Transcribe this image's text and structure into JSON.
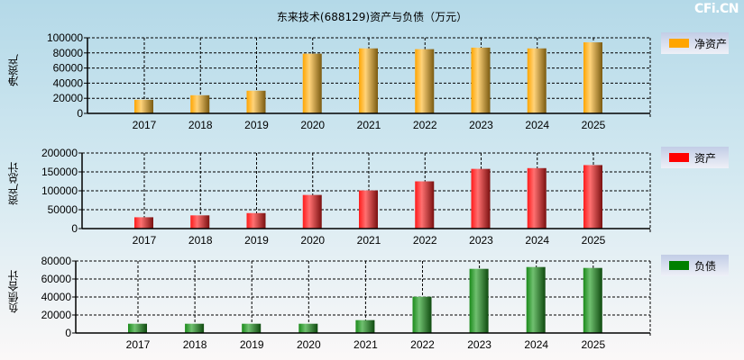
{
  "title": "东来技术(688129)资产与负债（万元）",
  "watermark": "CFi.CN",
  "chart_data": [
    {
      "type": "bar",
      "ylabel": "净资产",
      "legend": "净资产",
      "color": "#ffa500",
      "categories": [
        "2017",
        "2018",
        "2019",
        "2020",
        "2021",
        "2022",
        "2023",
        "2024",
        "2025"
      ],
      "values": [
        18000,
        24000,
        30000,
        79000,
        86000,
        85000,
        87000,
        86000,
        94000
      ],
      "ylim": [
        0,
        100000
      ],
      "yticks": [
        0,
        20000,
        40000,
        60000,
        80000,
        100000
      ],
      "grid": true,
      "legend_position": "right"
    },
    {
      "type": "bar",
      "ylabel": "资产总计",
      "legend": "资产",
      "color": "#ff0000",
      "categories": [
        "2017",
        "2018",
        "2019",
        "2020",
        "2021",
        "2022",
        "2023",
        "2024",
        "2025"
      ],
      "values": [
        30000,
        35000,
        41000,
        89000,
        101000,
        125000,
        158000,
        160000,
        168000
      ],
      "ylim": [
        0,
        200000
      ],
      "yticks": [
        0,
        50000,
        100000,
        150000,
        200000
      ],
      "grid": true,
      "legend_position": "right"
    },
    {
      "type": "bar",
      "ylabel": "负债合计",
      "legend": "负债",
      "color": "#008000",
      "categories": [
        "2017",
        "2018",
        "2019",
        "2020",
        "2021",
        "2022",
        "2023",
        "2024",
        "2025"
      ],
      "values": [
        10300,
        10300,
        10300,
        10300,
        14300,
        40300,
        71300,
        73300,
        72300
      ],
      "ylim": [
        0,
        80000
      ],
      "yticks": [
        0,
        20000,
        40000,
        60000,
        80000
      ],
      "grid": true,
      "legend_position": "right"
    }
  ]
}
